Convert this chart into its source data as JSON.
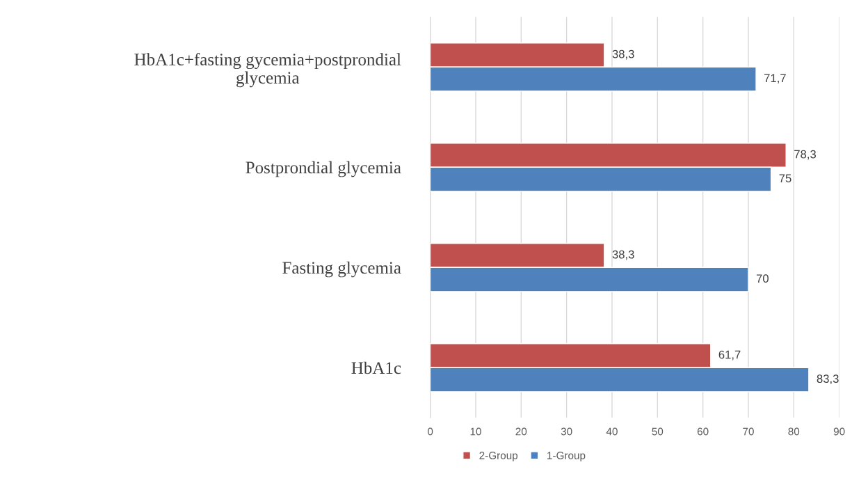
{
  "chart_data": {
    "type": "bar",
    "orientation": "horizontal",
    "categories": [
      "HbA1c+fasting gycemia+postprondial\nglycemia",
      "Postprondial glycemia",
      "Fasting glycemia",
      "HbA1c"
    ],
    "series": [
      {
        "name": "2-Group",
        "color": "#c0504d",
        "values": [
          38.3,
          78.3,
          38.3,
          61.7
        ],
        "value_labels": [
          "38,3",
          "78,3",
          "38,3",
          "61,7"
        ]
      },
      {
        "name": "1-Group",
        "color": "#4f81bd",
        "values": [
          71.7,
          75,
          70,
          83.3
        ],
        "value_labels": [
          "71,7",
          "75",
          "70",
          "83,3"
        ]
      }
    ],
    "xlim": [
      0,
      90
    ],
    "xticks": [
      0,
      10,
      20,
      30,
      40,
      50,
      60,
      70,
      80,
      90
    ],
    "grid": "x",
    "legend": "bottom"
  }
}
